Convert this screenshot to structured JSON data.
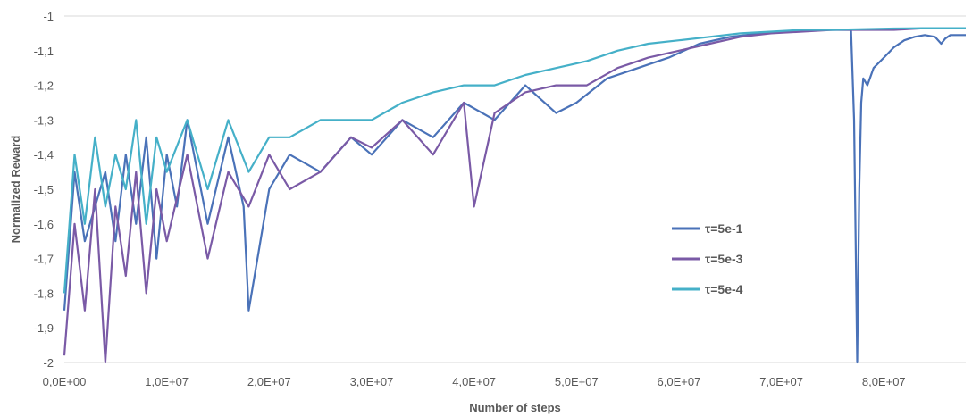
{
  "chart_data": {
    "type": "line",
    "title": "",
    "xlabel": "Number of steps",
    "ylabel": "Normalized Reward",
    "xlim": [
      0,
      88000000
    ],
    "ylim": [
      -2,
      -1
    ],
    "x_ticks": [
      0,
      10000000,
      20000000,
      30000000,
      40000000,
      50000000,
      60000000,
      70000000,
      80000000
    ],
    "x_tick_labels": [
      "0,0E+00",
      "1,0E+07",
      "2,0E+07",
      "3,0E+07",
      "4,0E+07",
      "5,0E+07",
      "6,0E+07",
      "7,0E+07",
      "8,0E+07"
    ],
    "y_ticks": [
      -1,
      -1.1,
      -1.2,
      -1.3,
      -1.4,
      -1.5,
      -1.6,
      -1.7,
      -1.8,
      -1.9,
      -2
    ],
    "y_tick_labels": [
      "-1",
      "-1,1",
      "-1,2",
      "-1,3",
      "-1,4",
      "-1,5",
      "-1,6",
      "-1,7",
      "-1,8",
      "-1,9",
      "-2"
    ],
    "grid": "horizontal top line only",
    "legend_position": "center-right",
    "series": [
      {
        "name": "τ=5e-1",
        "color": "#4a72b8",
        "x": [
          0,
          1000000,
          2000000,
          3000000,
          4000000,
          5000000,
          6000000,
          7000000,
          8000000,
          9000000,
          10000000,
          11000000,
          12000000,
          14000000,
          16000000,
          17500000,
          18000000,
          20000000,
          22000000,
          25000000,
          28000000,
          30000000,
          33000000,
          36000000,
          39000000,
          42000000,
          45000000,
          48000000,
          50000000,
          53000000,
          56000000,
          59000000,
          62000000,
          65000000,
          68000000,
          70000000,
          72000000,
          74000000,
          76000000,
          76800000,
          77100000,
          77400000,
          77600000,
          77800000,
          78000000,
          78400000,
          79000000,
          80000000,
          81000000,
          82000000,
          83000000,
          84000000,
          85000000,
          85600000,
          86000000,
          86500000,
          87000000,
          88000000
        ],
        "values": [
          -1.85,
          -1.45,
          -1.65,
          -1.55,
          -1.45,
          -1.65,
          -1.4,
          -1.6,
          -1.35,
          -1.7,
          -1.4,
          -1.55,
          -1.3,
          -1.6,
          -1.35,
          -1.55,
          -1.85,
          -1.5,
          -1.4,
          -1.45,
          -1.35,
          -1.4,
          -1.3,
          -1.35,
          -1.25,
          -1.3,
          -1.2,
          -1.28,
          -1.25,
          -1.18,
          -1.15,
          -1.12,
          -1.08,
          -1.06,
          -1.05,
          -1.045,
          -1.04,
          -1.04,
          -1.04,
          -1.04,
          -1.3,
          -2.0,
          -1.5,
          -1.25,
          -1.18,
          -1.2,
          -1.15,
          -1.12,
          -1.09,
          -1.07,
          -1.06,
          -1.055,
          -1.06,
          -1.08,
          -1.065,
          -1.055,
          -1.055,
          -1.055
        ]
      },
      {
        "name": "τ=5e-3",
        "color": "#7a5aa6",
        "x": [
          0,
          1000000,
          2000000,
          3000000,
          4000000,
          5000000,
          6000000,
          7000000,
          8000000,
          9000000,
          10000000,
          12000000,
          14000000,
          16000000,
          18000000,
          20000000,
          22000000,
          25000000,
          28000000,
          30000000,
          33000000,
          36000000,
          39000000,
          40000000,
          42000000,
          45000000,
          48000000,
          51000000,
          54000000,
          57000000,
          60000000,
          63000000,
          66000000,
          69000000,
          72000000,
          75000000,
          78000000,
          81000000,
          84000000,
          86000000,
          88000000
        ],
        "values": [
          -1.98,
          -1.6,
          -1.85,
          -1.5,
          -2.0,
          -1.55,
          -1.75,
          -1.45,
          -1.8,
          -1.5,
          -1.65,
          -1.4,
          -1.7,
          -1.45,
          -1.55,
          -1.4,
          -1.5,
          -1.45,
          -1.35,
          -1.38,
          -1.3,
          -1.4,
          -1.25,
          -1.55,
          -1.28,
          -1.22,
          -1.2,
          -1.2,
          -1.15,
          -1.12,
          -1.1,
          -1.08,
          -1.06,
          -1.05,
          -1.045,
          -1.04,
          -1.04,
          -1.04,
          -1.035,
          -1.035,
          -1.035
        ]
      },
      {
        "name": "τ=5e-4",
        "color": "#45b0c8",
        "x": [
          0,
          1000000,
          2000000,
          3000000,
          4000000,
          5000000,
          6000000,
          7000000,
          8000000,
          9000000,
          10000000,
          12000000,
          14000000,
          16000000,
          18000000,
          20000000,
          22000000,
          25000000,
          28000000,
          30000000,
          33000000,
          36000000,
          39000000,
          42000000,
          45000000,
          48000000,
          51000000,
          54000000,
          57000000,
          60000000,
          63000000,
          66000000,
          69000000,
          72000000,
          75000000,
          78000000,
          81000000,
          84000000,
          86000000,
          88000000
        ],
        "values": [
          -1.8,
          -1.4,
          -1.6,
          -1.35,
          -1.55,
          -1.4,
          -1.5,
          -1.3,
          -1.6,
          -1.35,
          -1.45,
          -1.3,
          -1.5,
          -1.3,
          -1.45,
          -1.35,
          -1.35,
          -1.3,
          -1.3,
          -1.3,
          -1.25,
          -1.22,
          -1.2,
          -1.2,
          -1.17,
          -1.15,
          -1.13,
          -1.1,
          -1.08,
          -1.07,
          -1.06,
          -1.05,
          -1.045,
          -1.04,
          -1.04,
          -1.038,
          -1.036,
          -1.035,
          -1.035,
          -1.035
        ]
      }
    ]
  }
}
